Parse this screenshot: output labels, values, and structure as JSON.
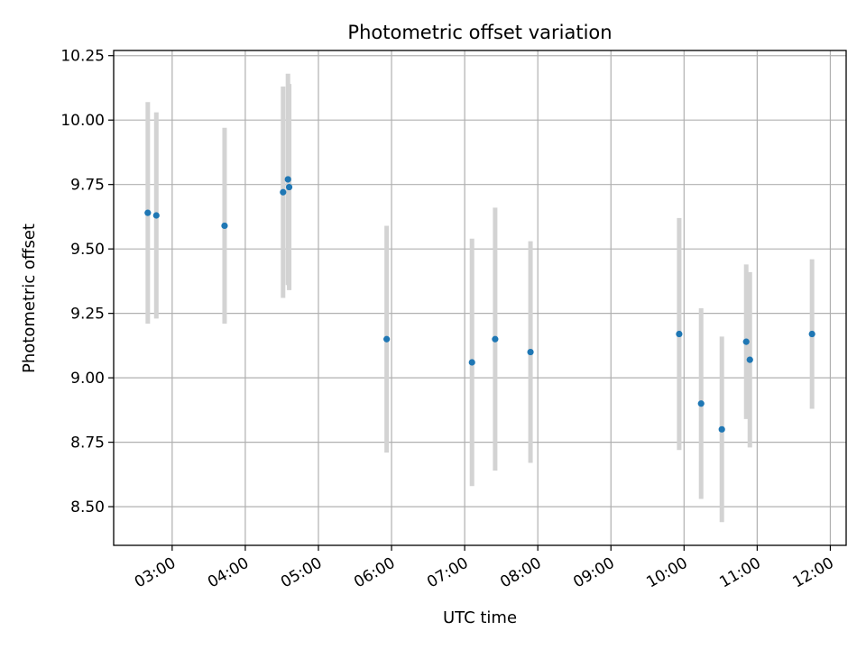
{
  "chart_data": {
    "type": "scatter",
    "title": "Photometric offset variation",
    "xlabel": "UTC time",
    "ylabel": "Photometric offset",
    "x_axis": "time",
    "xlim": [
      "02:12",
      "12:13"
    ],
    "ylim": [
      8.35,
      10.27
    ],
    "x_ticks": [
      "03:00",
      "04:00",
      "05:00",
      "06:00",
      "07:00",
      "08:00",
      "09:00",
      "10:00",
      "11:00",
      "12:00"
    ],
    "y_ticks": [
      "8.50",
      "8.75",
      "9.00",
      "9.25",
      "9.50",
      "9.75",
      "10.00",
      "10.25"
    ],
    "grid": true,
    "legend": "none",
    "colors": {
      "point": "#1f77b4",
      "errorbar": "#d3d3d3",
      "grid": "#b0b0b0"
    },
    "series": [
      {
        "points": [
          {
            "x": "02:40",
            "y": 9.64,
            "err": 0.43
          },
          {
            "x": "02:47",
            "y": 9.63,
            "err": 0.4
          },
          {
            "x": "03:43",
            "y": 9.59,
            "err": 0.38
          },
          {
            "x": "04:31",
            "y": 9.72,
            "err": 0.41
          },
          {
            "x": "04:35",
            "y": 9.77,
            "err": 0.41
          },
          {
            "x": "04:36",
            "y": 9.74,
            "err": 0.4
          },
          {
            "x": "05:56",
            "y": 9.15,
            "err": 0.44
          },
          {
            "x": "07:06",
            "y": 9.06,
            "err": 0.48
          },
          {
            "x": "07:25",
            "y": 9.15,
            "err": 0.51
          },
          {
            "x": "07:54",
            "y": 9.1,
            "err": 0.43
          },
          {
            "x": "09:56",
            "y": 9.17,
            "err": 0.45
          },
          {
            "x": "10:14",
            "y": 8.9,
            "err": 0.37
          },
          {
            "x": "10:31",
            "y": 8.8,
            "err": 0.36
          },
          {
            "x": "10:51",
            "y": 9.14,
            "err": 0.3
          },
          {
            "x": "10:54",
            "y": 9.07,
            "err": 0.34
          },
          {
            "x": "11:45",
            "y": 9.17,
            "err": 0.29
          }
        ]
      }
    ]
  }
}
